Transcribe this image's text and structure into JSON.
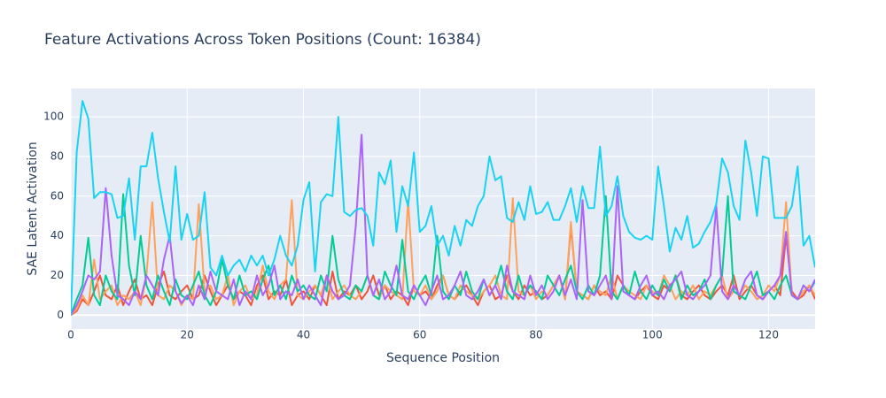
{
  "chart_data": {
    "type": "line",
    "title": "Feature Activations Across Token Positions (Count: 16384)",
    "x_label": "Sequence Position",
    "y_label": "SAE Latent Activation",
    "xlim": [
      0,
      128
    ],
    "ylim": [
      -7,
      114.3
    ],
    "xticks": [
      0,
      20,
      40,
      60,
      80,
      100,
      120
    ],
    "yticks": [
      0,
      20,
      40,
      60,
      80,
      100
    ],
    "grid": true,
    "x": [
      0,
      1,
      2,
      3,
      4,
      5,
      6,
      7,
      8,
      9,
      10,
      11,
      12,
      13,
      14,
      15,
      16,
      17,
      18,
      19,
      20,
      21,
      22,
      23,
      24,
      25,
      26,
      27,
      28,
      29,
      30,
      31,
      32,
      33,
      34,
      35,
      36,
      37,
      38,
      39,
      40,
      41,
      42,
      43,
      44,
      45,
      46,
      47,
      48,
      49,
      50,
      51,
      52,
      53,
      54,
      55,
      56,
      57,
      58,
      59,
      60,
      61,
      62,
      63,
      64,
      65,
      66,
      67,
      68,
      69,
      70,
      71,
      72,
      73,
      74,
      75,
      76,
      77,
      78,
      79,
      80,
      81,
      82,
      83,
      84,
      85,
      86,
      87,
      88,
      89,
      90,
      91,
      92,
      93,
      94,
      95,
      96,
      97,
      98,
      99,
      100,
      101,
      102,
      103,
      104,
      105,
      106,
      107,
      108,
      109,
      110,
      111,
      112,
      113,
      114,
      115,
      116,
      117,
      118,
      119,
      120,
      121,
      122,
      123,
      124,
      125,
      126,
      127,
      128
    ],
    "series": [
      {
        "color": "#ef553b",
        "values": [
          0,
          2,
          8,
          5,
          12,
          20,
          10,
          8,
          15,
          5,
          12,
          18,
          8,
          10,
          5,
          15,
          22,
          10,
          8,
          12,
          15,
          8,
          10,
          20,
          12,
          5,
          10,
          15,
          8,
          12,
          10,
          5,
          15,
          20,
          8,
          12,
          10,
          18,
          5,
          10,
          12,
          8,
          15,
          10,
          5,
          22,
          8,
          12,
          10,
          15,
          8,
          12,
          20,
          10,
          15,
          8,
          12,
          10,
          5,
          15,
          10,
          12,
          8,
          15,
          20,
          10,
          8,
          12,
          15,
          10,
          5,
          12,
          15,
          8,
          10,
          20,
          12,
          8,
          15,
          10,
          12,
          8,
          10,
          15,
          20,
          8,
          45,
          12,
          10,
          8,
          15,
          10,
          12,
          8,
          20,
          15,
          10,
          8,
          12,
          15,
          10,
          8,
          15,
          12,
          20,
          10,
          8,
          12,
          15,
          10,
          8,
          12,
          15,
          10,
          20,
          8,
          12,
          15,
          10,
          8,
          12,
          15,
          10,
          40,
          12,
          8,
          10,
          15,
          8
        ]
      },
      {
        "color": "#ffa15a",
        "values": [
          0,
          3,
          10,
          5,
          28,
          8,
          12,
          15,
          5,
          10,
          8,
          12,
          5,
          20,
          57,
          10,
          8,
          15,
          12,
          5,
          10,
          8,
          56,
          12,
          15,
          8,
          10,
          20,
          5,
          12,
          15,
          8,
          10,
          25,
          12,
          8,
          15,
          18,
          58,
          10,
          8,
          12,
          15,
          10,
          20,
          8,
          12,
          15,
          10,
          8,
          12,
          20,
          10,
          8,
          15,
          12,
          10,
          8,
          58,
          12,
          10,
          15,
          8,
          12,
          20,
          10,
          8,
          15,
          12,
          10,
          8,
          12,
          15,
          20,
          10,
          8,
          59,
          12,
          10,
          15,
          8,
          12,
          10,
          15,
          20,
          8,
          47,
          12,
          10,
          8,
          15,
          12,
          10,
          20,
          8,
          15,
          12,
          10,
          8,
          15,
          12,
          10,
          20,
          15,
          8,
          12,
          10,
          15,
          8,
          12,
          10,
          15,
          20,
          8,
          12,
          10,
          15,
          12,
          8,
          10,
          15,
          12,
          20,
          57,
          10,
          8,
          12,
          15,
          10
        ]
      },
      {
        "color": "#00cc96",
        "values": [
          0,
          8,
          15,
          39,
          10,
          5,
          20,
          12,
          8,
          61,
          25,
          10,
          40,
          15,
          8,
          20,
          12,
          5,
          18,
          10,
          8,
          15,
          22,
          10,
          5,
          12,
          28,
          15,
          8,
          20,
          10,
          12,
          8,
          18,
          25,
          10,
          15,
          8,
          20,
          12,
          15,
          10,
          8,
          20,
          12,
          40,
          18,
          10,
          8,
          15,
          12,
          20,
          10,
          8,
          22,
          15,
          10,
          38,
          12,
          8,
          15,
          20,
          10,
          40,
          12,
          8,
          15,
          10,
          22,
          12,
          8,
          18,
          10,
          15,
          25,
          12,
          8,
          20,
          10,
          15,
          12,
          8,
          20,
          15,
          10,
          18,
          25,
          12,
          8,
          15,
          10,
          20,
          60,
          12,
          8,
          15,
          10,
          22,
          12,
          8,
          15,
          10,
          18,
          12,
          20,
          8,
          15,
          10,
          12,
          18,
          8,
          15,
          20,
          60,
          12,
          10,
          8,
          15,
          22,
          10,
          12,
          8,
          15,
          20,
          10,
          8,
          15,
          12,
          17
        ]
      },
      {
        "color": "#ab63fa",
        "values": [
          0,
          5,
          12,
          20,
          18,
          22,
          64,
          30,
          10,
          8,
          5,
          12,
          8,
          20,
          15,
          10,
          28,
          40,
          12,
          6,
          10,
          5,
          15,
          8,
          22,
          12,
          10,
          8,
          18,
          5,
          12,
          8,
          20,
          10,
          15,
          25,
          8,
          12,
          10,
          18,
          8,
          15,
          10,
          5,
          20,
          12,
          8,
          10,
          15,
          45,
          91,
          20,
          10,
          18,
          8,
          12,
          25,
          10,
          8,
          15,
          10,
          5,
          12,
          20,
          8,
          10,
          15,
          22,
          10,
          8,
          12,
          18,
          10,
          15,
          8,
          25,
          12,
          10,
          8,
          20,
          10,
          15,
          8,
          12,
          20,
          10,
          18,
          8,
          58,
          12,
          10,
          15,
          20,
          8,
          65,
          12,
          10,
          8,
          15,
          20,
          10,
          12,
          8,
          15,
          18,
          22,
          10,
          8,
          12,
          15,
          20,
          55,
          12,
          8,
          15,
          10,
          18,
          22,
          10,
          8,
          12,
          15,
          20,
          42,
          10,
          8,
          15,
          12,
          18
        ]
      },
      {
        "color": "#19d3f3",
        "values": [
          0,
          82,
          108,
          99,
          59,
          62,
          62,
          61,
          49,
          50,
          69,
          38,
          75,
          75,
          92,
          69,
          52,
          37,
          75,
          38,
          51,
          38,
          40,
          62,
          24,
          20,
          30,
          20,
          25,
          28,
          22,
          30,
          25,
          30,
          20,
          28,
          40,
          30,
          25,
          35,
          58,
          67,
          22,
          57,
          61,
          60,
          100,
          52,
          50,
          53,
          54,
          50,
          35,
          72,
          66,
          78,
          42,
          65,
          55,
          82,
          42,
          45,
          55,
          35,
          40,
          30,
          45,
          35,
          48,
          45,
          55,
          60,
          80,
          68,
          70,
          49,
          47,
          57,
          48,
          65,
          51,
          52,
          57,
          48,
          48,
          55,
          64,
          47,
          65,
          54,
          54,
          85,
          50,
          55,
          70,
          50,
          42,
          39,
          38,
          40,
          38,
          75,
          55,
          32,
          44,
          38,
          50,
          34,
          36,
          42,
          47,
          56,
          79,
          72,
          55,
          48,
          88,
          72,
          50,
          80,
          79,
          49,
          49,
          49,
          55,
          75,
          35,
          40,
          24
        ]
      }
    ]
  }
}
